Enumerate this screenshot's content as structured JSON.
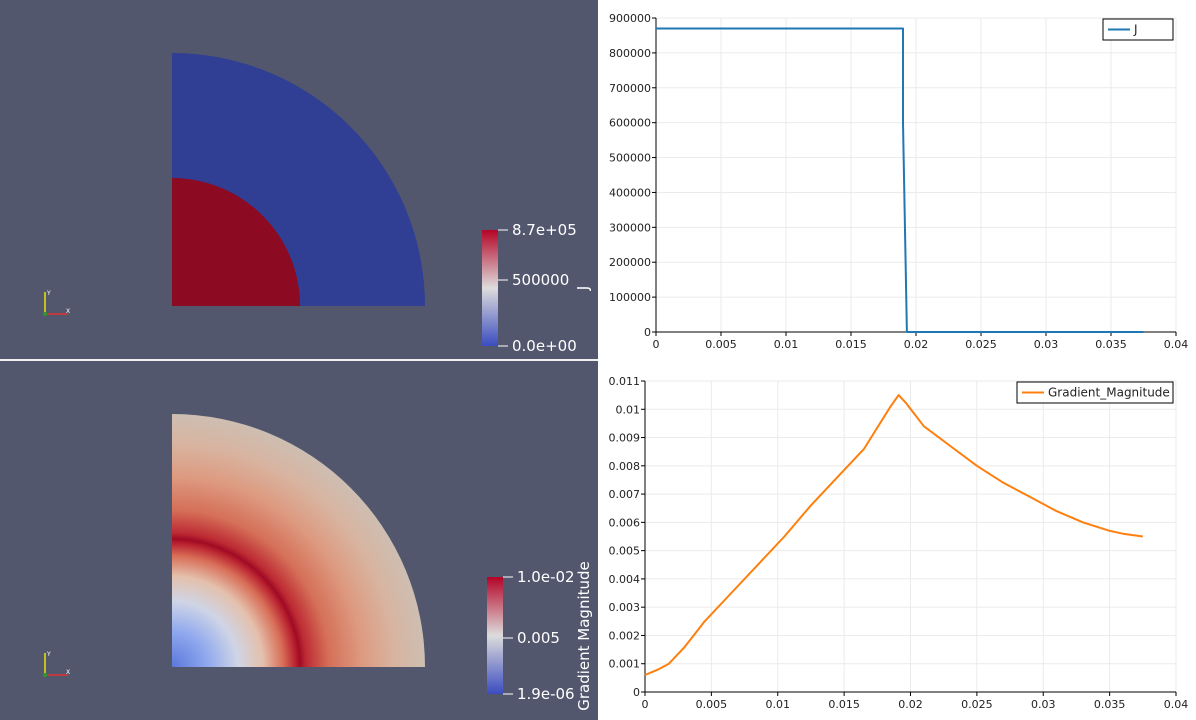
{
  "views": {
    "top": {
      "colorbar": {
        "title": "J",
        "labels": [
          "8.7e+05",
          "500000",
          "0.0e+00"
        ],
        "colors": [
          "#b40426",
          "#dddcdc",
          "#3b4cc0"
        ]
      },
      "field": {
        "inner_color": "#8c0a22",
        "outer_color": "#303e94"
      },
      "axes": {
        "y": "Y",
        "x": "X"
      }
    },
    "bottom": {
      "colorbar": {
        "title": "Gradient Magnitude",
        "labels": [
          "1.0e-02",
          "0.005",
          "1.9e-06"
        ],
        "colors": [
          "#b40426",
          "#dddcdc",
          "#3b4cc0"
        ]
      },
      "axes": {
        "y": "Y",
        "x": "X"
      }
    }
  },
  "chart_data": [
    {
      "type": "line",
      "series": [
        {
          "name": "J",
          "color": "#1f77b4",
          "x": [
            0,
            0.019,
            0.019,
            0.0193,
            0.0375
          ],
          "y": [
            870000,
            870000,
            600000,
            0,
            0
          ]
        }
      ],
      "xlim": [
        0,
        0.04
      ],
      "ylim": [
        0,
        900000
      ],
      "xticks": [
        0,
        0.005,
        0.01,
        0.015,
        0.02,
        0.025,
        0.03,
        0.035,
        0.04
      ],
      "xtick_labels": [
        "0",
        "0.005",
        "0.01",
        "0.015",
        "0.02",
        "0.025",
        "0.03",
        "0.035",
        "0.04"
      ],
      "yticks": [
        0,
        100000,
        200000,
        300000,
        400000,
        500000,
        600000,
        700000,
        800000,
        900000
      ],
      "ytick_labels": [
        "0",
        "100000",
        "200000",
        "300000",
        "400000",
        "500000",
        "600000",
        "700000",
        "800000",
        "900000"
      ],
      "grid": true,
      "legend": "top-right"
    },
    {
      "type": "line",
      "series": [
        {
          "name": "Gradient_Magnitude",
          "color": "#ff7f0e",
          "x": [
            0,
            0.001,
            0.0018,
            0.003,
            0.0045,
            0.0065,
            0.0085,
            0.0105,
            0.0125,
            0.0145,
            0.0165,
            0.0185,
            0.0191,
            0.0197,
            0.021,
            0.023,
            0.025,
            0.027,
            0.029,
            0.031,
            0.033,
            0.035,
            0.036,
            0.0375
          ],
          "y": [
            0.0006,
            0.0008,
            0.001,
            0.0016,
            0.0025,
            0.0035,
            0.0045,
            0.0055,
            0.0066,
            0.0076,
            0.0086,
            0.0101,
            0.0105,
            0.0102,
            0.0094,
            0.0087,
            0.008,
            0.0074,
            0.0069,
            0.0064,
            0.006,
            0.0057,
            0.0056,
            0.0055
          ]
        }
      ],
      "xlim": [
        0,
        0.04
      ],
      "ylim": [
        0,
        0.011
      ],
      "xticks": [
        0,
        0.005,
        0.01,
        0.015,
        0.02,
        0.025,
        0.03,
        0.035,
        0.04
      ],
      "xtick_labels": [
        "0",
        "0.005",
        "0.01",
        "0.015",
        "0.02",
        "0.025",
        "0.03",
        "0.035",
        "0.04"
      ],
      "yticks": [
        0,
        0.001,
        0.002,
        0.003,
        0.004,
        0.005,
        0.006,
        0.007,
        0.008,
        0.009,
        0.01,
        0.011
      ],
      "ytick_labels": [
        "0",
        "0.001",
        "0.002",
        "0.003",
        "0.004",
        "0.005",
        "0.006",
        "0.007",
        "0.008",
        "0.009",
        "0.01",
        "0.011"
      ],
      "grid": true,
      "legend": "top-right"
    }
  ]
}
